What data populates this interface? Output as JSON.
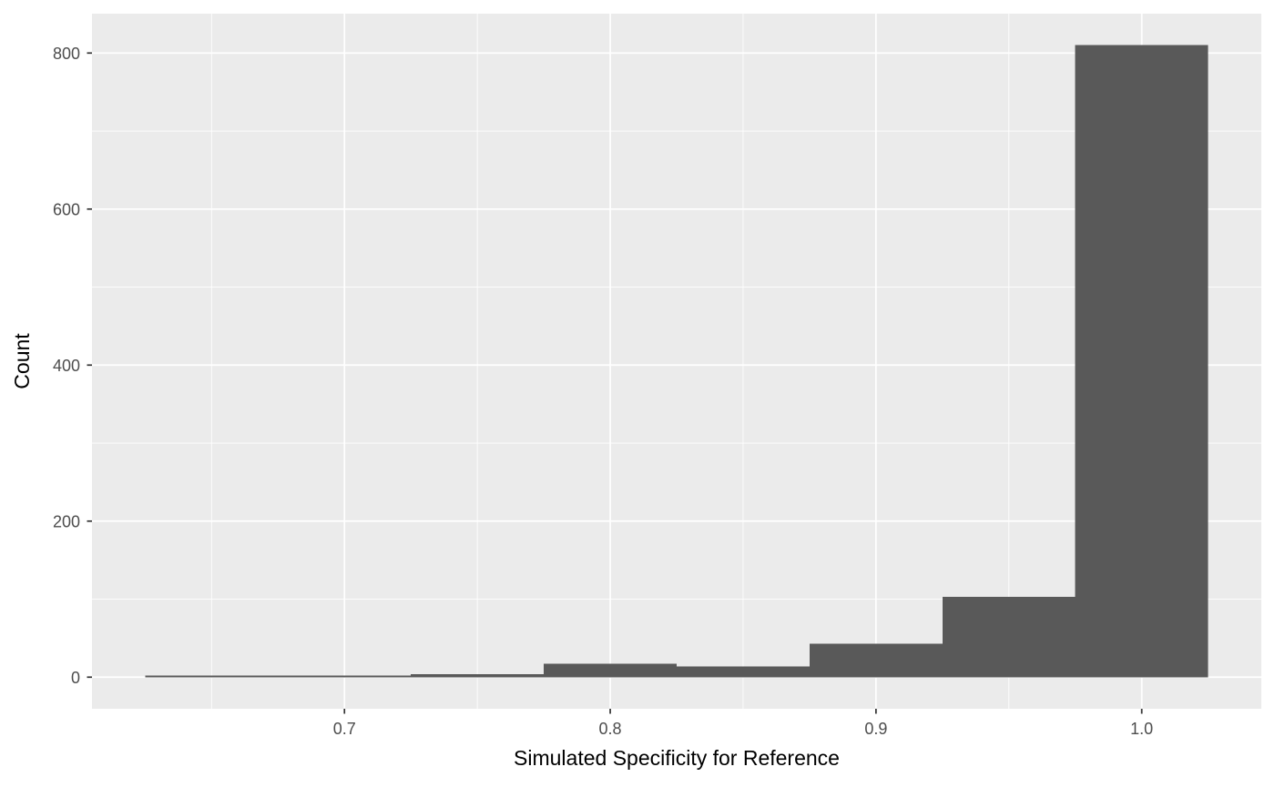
{
  "figure": {
    "kind": "ggplot-histogram",
    "page_background": "#FFFFFF"
  },
  "chart_data": {
    "type": "bar",
    "subtype": "histogram",
    "title": "",
    "xlabel": "Simulated Specificity for Reference",
    "ylabel": "Count",
    "bin_width": 0.05,
    "bin_edges": [
      0.625,
      0.675,
      0.725,
      0.775,
      0.825,
      0.875,
      0.925,
      0.975,
      1.025
    ],
    "counts": [
      2,
      2,
      4,
      17,
      14,
      43,
      103,
      810
    ],
    "x_ticks": {
      "values": [
        0.7,
        0.8,
        0.9,
        1.0
      ],
      "labels": [
        "0.7",
        "0.8",
        "0.9",
        "1.0"
      ]
    },
    "x_minor_ticks": [
      0.65,
      0.75,
      0.85,
      0.95
    ],
    "y_ticks": {
      "values": [
        0,
        200,
        400,
        600,
        800
      ],
      "labels": [
        "0",
        "200",
        "400",
        "600",
        "800"
      ]
    },
    "y_minor_ticks": [
      100,
      300,
      500,
      700
    ],
    "xlim": [
      0.605,
      1.045
    ],
    "ylim": [
      -40.5,
      850.5
    ],
    "grid": {
      "major": true,
      "minor": true
    },
    "legend": false,
    "colors": {
      "panel_background": "#EBEBEB",
      "grid": "#FFFFFF",
      "bar_fill": "#595959",
      "axis_text": "#4D4D4D",
      "axis_ticks": "#333333",
      "axis_title": "#000000",
      "page_background": "#FFFFFF"
    }
  }
}
